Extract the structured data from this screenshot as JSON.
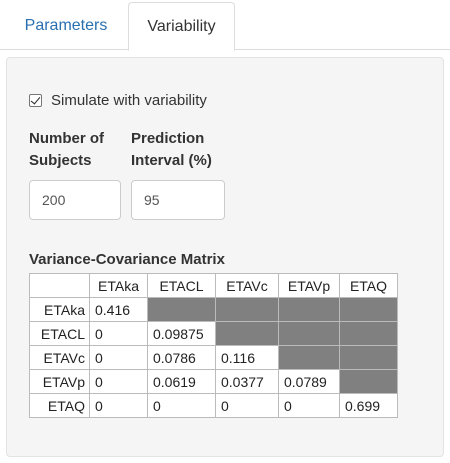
{
  "tabs": [
    {
      "label": "Parameters",
      "active": false
    },
    {
      "label": "Variability",
      "active": true
    }
  ],
  "simulate_checkbox": {
    "label": "Simulate with variability",
    "checked": true
  },
  "subjects": {
    "label_line1": "Number of",
    "label_line2": "Subjects",
    "value": "200"
  },
  "prediction_interval": {
    "label_line1": "Prediction",
    "label_line2": "Interval (%)",
    "value": "95"
  },
  "matrix": {
    "title": "Variance-Covariance Matrix",
    "columns": [
      "ETAka",
      "ETACL",
      "ETAVc",
      "ETAVp",
      "ETAQ"
    ],
    "rows": [
      {
        "label": "ETAka",
        "cells": [
          "0.416",
          "",
          "",
          "",
          ""
        ]
      },
      {
        "label": "ETACL",
        "cells": [
          "0",
          "0.09875",
          "",
          "",
          ""
        ]
      },
      {
        "label": "ETAVc",
        "cells": [
          "0",
          "0.0786",
          "0.116",
          "",
          ""
        ]
      },
      {
        "label": "ETAVp",
        "cells": [
          "0",
          "0.0619",
          "0.0377",
          "0.0789",
          ""
        ]
      },
      {
        "label": "ETAQ",
        "cells": [
          "0",
          "0",
          "0",
          "0",
          "0.699"
        ]
      }
    ],
    "colors": {
      "disabled_cell": "#808080"
    }
  },
  "colors": {
    "link_tab": "#2a6fb0",
    "panel_bg": "#f5f5f5"
  }
}
